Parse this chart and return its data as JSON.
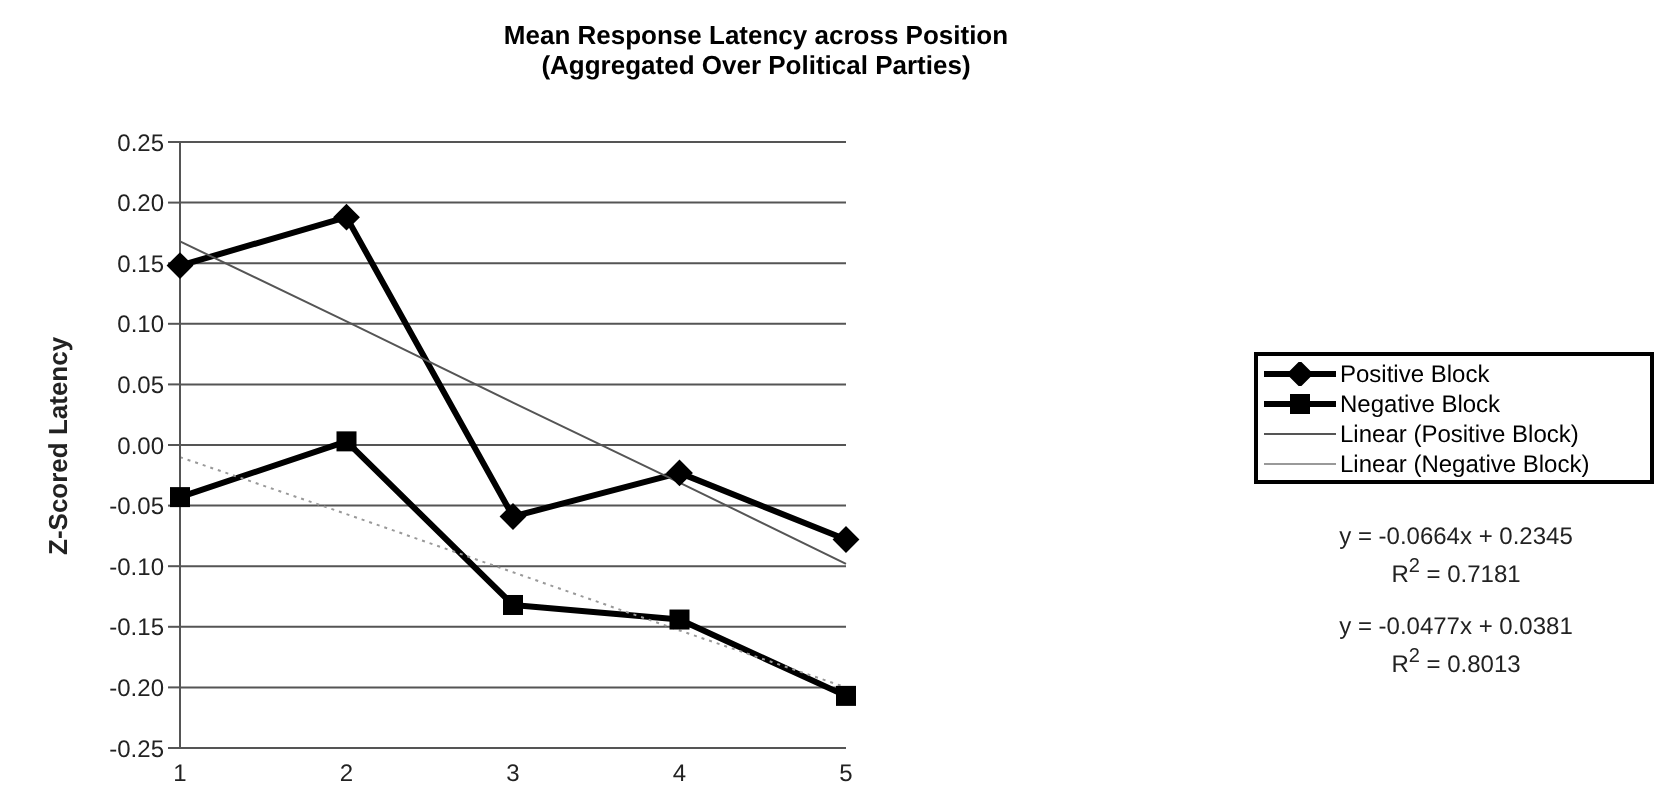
{
  "chart_data": {
    "type": "line",
    "title": "Mean Response Latency across Position\n(Aggregated Over Political Parties)",
    "ylabel": "Z-Scored Latency",
    "categories": [
      "1",
      "2",
      "3",
      "4",
      "5"
    ],
    "series": [
      {
        "name": "Positive Block",
        "color": "#000000",
        "marker": "diamond",
        "values": [
          0.148,
          0.188,
          -0.059,
          -0.023,
          -0.078
        ]
      },
      {
        "name": "Negative Block",
        "color": "#000000",
        "marker": "square",
        "values": [
          -0.043,
          0.003,
          -0.132,
          -0.144,
          -0.207
        ]
      },
      {
        "name": "Linear (Positive Block)",
        "color": "#555555",
        "marker": "none",
        "line_style": "solid",
        "values": [
          0.168,
          0.102,
          0.035,
          -0.031,
          -0.098
        ]
      },
      {
        "name": "Linear (Negative Block)",
        "color": "#999999",
        "marker": "none",
        "line_style": "dotted",
        "values": [
          -0.01,
          -0.057,
          -0.105,
          -0.153,
          -0.2
        ]
      }
    ],
    "ylim": [
      -0.25,
      0.25
    ],
    "yticks": [
      {
        "value": -0.25,
        "label": "-0.25"
      },
      {
        "value": -0.2,
        "label": "-0.20"
      },
      {
        "value": -0.15,
        "label": "-0.15"
      },
      {
        "value": -0.1,
        "label": "-0.10"
      },
      {
        "value": -0.05,
        "label": "-0.05"
      },
      {
        "value": 0,
        "label": "0.00"
      },
      {
        "value": 0.05,
        "label": "0.05"
      },
      {
        "value": 0.1,
        "label": "0.10"
      },
      {
        "value": 0.15,
        "label": "0.15"
      },
      {
        "value": 0.2,
        "label": "0.20"
      },
      {
        "value": 0.25,
        "label": "0.25"
      }
    ],
    "grid": "y",
    "legend": "right",
    "annotations": [
      "y = -0.0664x + 0.2345",
      "R$^{2}$ = 0.7181",
      "y = -0.0477x + 0.0381",
      "R$^{2}$ = 0.8013"
    ]
  }
}
